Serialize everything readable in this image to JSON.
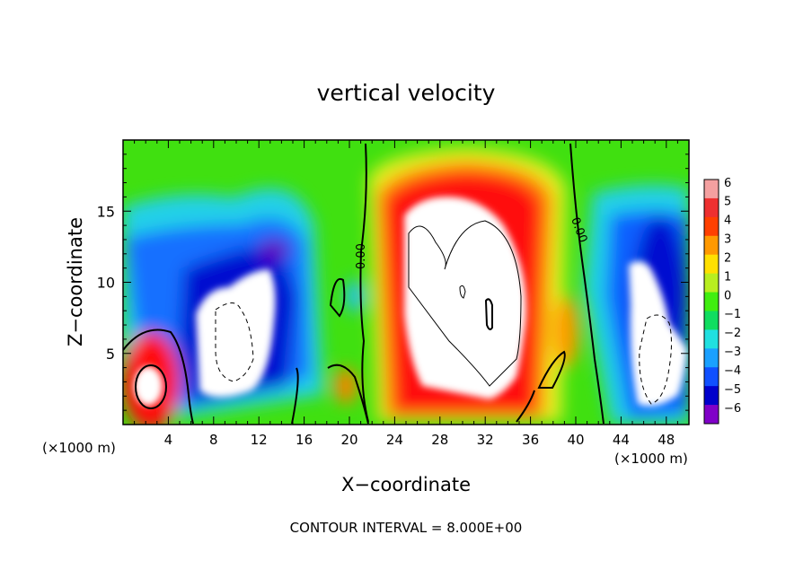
{
  "chart_data": {
    "type": "heatmap",
    "title": "vertical velocity",
    "xlabel": "X−coordinate",
    "ylabel": "Z−coordinate",
    "x_unit_left": "(×1000 m)",
    "x_unit_right": "(×1000 m)",
    "xlim": [
      0,
      50
    ],
    "ylim": [
      0,
      20
    ],
    "x_ticks": [
      4,
      8,
      12,
      16,
      20,
      24,
      28,
      32,
      36,
      40,
      44,
      48
    ],
    "y_ticks": [
      5,
      10,
      15
    ],
    "grid": false,
    "colorbar": {
      "placement": "right",
      "levels": [
        6,
        5,
        4,
        3,
        2,
        1,
        0,
        -1,
        -2,
        -3,
        -4,
        -5,
        -6
      ],
      "level_labels": [
        "6",
        "5",
        "4",
        "3",
        "2",
        "1",
        "0",
        "−1",
        "−2",
        "−3",
        "−4",
        "−5",
        "−6"
      ],
      "colors": [
        "#f4a0a0",
        "#ee3030",
        "#ff4000",
        "#ff9900",
        "#ffe000",
        "#b8ee20",
        "#40ee10",
        "#10dd60",
        "#20e0e0",
        "#1aa0ff",
        "#1050ff",
        "#0000cc",
        "#8000c8"
      ]
    },
    "contour_labels": [
      "0.00",
      "0.00"
    ],
    "footer": "CONTOUR INTERVAL = 8.000E+00",
    "features": [
      {
        "x": 2.5,
        "z": 2.8,
        "sign": "positive",
        "peak": 6
      },
      {
        "x": 9.5,
        "z": 6.5,
        "sign": "negative",
        "peak": -6
      },
      {
        "x": 30.5,
        "z": 9.5,
        "sign": "positive",
        "peak": 6
      },
      {
        "x": 46.5,
        "z": 6.0,
        "sign": "negative",
        "peak": -6
      }
    ]
  }
}
